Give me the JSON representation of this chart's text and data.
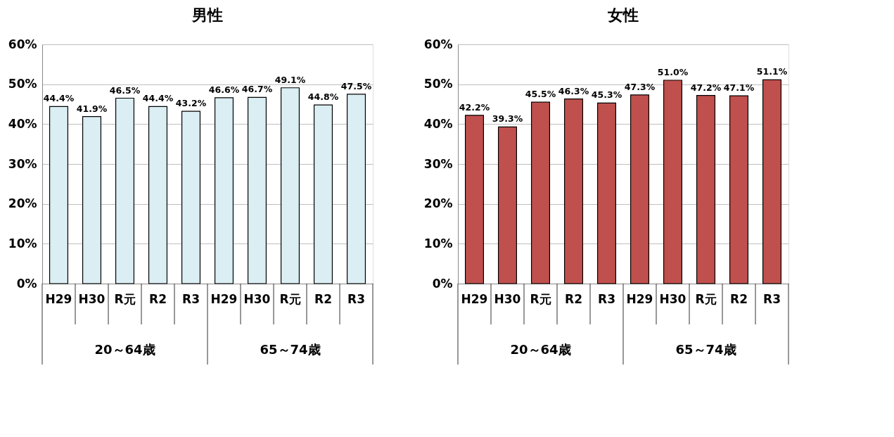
{
  "chart_data": [
    {
      "type": "bar",
      "title": "男性",
      "categories": [
        "H29",
        "H30",
        "R元",
        "R2",
        "R3",
        "H29",
        "H30",
        "R元",
        "R2",
        "R3"
      ],
      "values": [
        44.4,
        41.9,
        46.5,
        44.4,
        43.2,
        46.6,
        46.7,
        49.1,
        44.8,
        47.5
      ],
      "color": "#daeef3",
      "value_labels": [
        "44.4%",
        "41.9%",
        "46.5%",
        "44.4%",
        "43.2%",
        "46.6%",
        "46.7%",
        "49.1%",
        "44.8%",
        "47.5%"
      ],
      "ylim": [
        0,
        60
      ],
      "yticks": [
        {
          "value": 0,
          "label": "0%"
        },
        {
          "value": 10,
          "label": "10%"
        },
        {
          "value": 20,
          "label": "20%"
        },
        {
          "value": 30,
          "label": "30%"
        },
        {
          "value": 40,
          "label": "40%"
        },
        {
          "value": 50,
          "label": "50%"
        },
        {
          "value": 60,
          "label": "60%"
        }
      ],
      "grid": "y",
      "annotations": [
        "20～64歳",
        "65～74歳"
      ]
    },
    {
      "type": "bar",
      "title": "女性",
      "categories": [
        "H29",
        "H30",
        "R元",
        "R2",
        "R3",
        "H29",
        "H30",
        "R元",
        "R2",
        "R3"
      ],
      "values": [
        42.2,
        39.3,
        45.5,
        46.3,
        45.3,
        47.3,
        51.0,
        47.2,
        47.1,
        51.1
      ],
      "color": "#c0504d",
      "value_labels": [
        "42.2%",
        "39.3%",
        "45.5%",
        "46.3%",
        "45.3%",
        "47.3%",
        "51.0%",
        "47.2%",
        "47.1%",
        "51.1%"
      ],
      "ylim": [
        0,
        60
      ],
      "yticks": [
        {
          "value": 0,
          "label": "0%"
        },
        {
          "value": 10,
          "label": "10%"
        },
        {
          "value": 20,
          "label": "20%"
        },
        {
          "value": 30,
          "label": "30%"
        },
        {
          "value": 40,
          "label": "40%"
        },
        {
          "value": 50,
          "label": "50%"
        },
        {
          "value": 60,
          "label": "60%"
        }
      ],
      "grid": "y",
      "annotations": [
        "20～64歳",
        "65～74歳"
      ]
    }
  ]
}
